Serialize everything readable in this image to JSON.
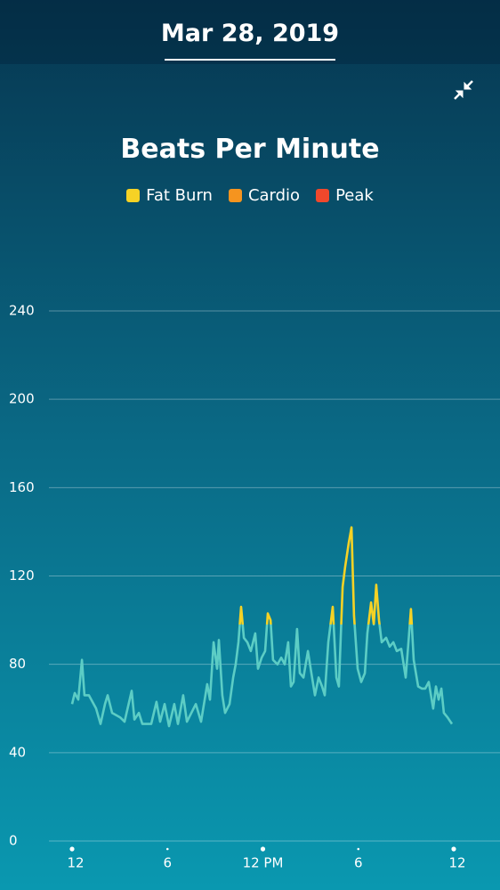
{
  "header": {
    "date": "Mar 28, 2019"
  },
  "chart_data": {
    "type": "line",
    "title": "Beats Per Minute",
    "zones": [
      {
        "name": "Fat Burn",
        "color": "#f6d225",
        "from": 98
      },
      {
        "name": "Cardio",
        "color": "#f5941f",
        "from": 145
      },
      {
        "name": "Peak",
        "color": "#f0482c",
        "from": 172
      }
    ],
    "x": [
      0,
      0.17,
      0.39,
      0.62,
      0.78,
      1.06,
      1.51,
      1.79,
      2.07,
      2.24,
      2.52,
      3.02,
      3.3,
      3.75,
      3.92,
      4.2,
      4.42,
      4.98,
      5.31,
      5.54,
      5.82,
      6.1,
      6.43,
      6.66,
      6.99,
      7.22,
      7.78,
      8.11,
      8.5,
      8.67,
      8.9,
      9.12,
      9.23,
      9.45,
      9.62,
      9.9,
      10.13,
      10.29,
      10.46,
      10.63,
      10.8,
      11.02,
      11.24,
      11.52,
      11.69,
      11.92,
      12.14,
      12.31,
      12.48,
      12.64,
      12.92,
      13.15,
      13.37,
      13.59,
      13.76,
      13.93,
      14.15,
      14.32,
      14.55,
      14.83,
      15.05,
      15.27,
      15.5,
      15.72,
      15.89,
      16.11,
      16.39,
      16.62,
      16.78,
      17.01,
      17.17,
      17.4,
      17.57,
      17.73,
      17.96,
      18.18,
      18.41,
      18.57,
      18.8,
      18.97,
      19.13,
      19.3,
      19.47,
      19.75,
      19.97,
      20.2,
      20.42,
      20.7,
      20.98,
      21.15,
      21.31,
      21.48,
      21.76,
      21.99,
      22.21,
      22.43,
      22.71,
      22.88,
      23.05,
      23.22,
      23.38,
      23.61,
      23.89
    ],
    "series": [
      {
        "color": "#5ccdc5",
        "values": [
          62,
          67,
          64,
          82,
          66,
          66,
          60,
          53,
          62,
          66,
          58,
          56,
          54,
          68,
          55,
          58,
          53,
          53,
          63,
          54,
          62,
          52,
          62,
          53,
          66,
          54,
          62,
          54,
          71,
          64,
          90,
          78,
          91,
          66,
          58,
          62,
          74,
          80,
          90,
          106,
          92,
          90,
          86,
          94,
          78,
          83,
          86,
          103,
          100,
          82,
          80,
          83,
          80,
          90,
          70,
          72,
          96,
          76,
          74,
          86,
          76,
          66,
          74,
          70,
          66,
          90,
          106,
          74,
          70,
          115,
          124,
          135,
          142,
          102,
          78,
          72,
          76,
          94,
          108,
          98,
          116,
          100,
          90,
          92,
          88,
          90,
          86,
          87,
          74,
          90,
          105,
          82,
          70,
          69,
          69,
          72,
          60,
          70,
          64,
          69,
          58,
          56,
          53
        ]
      }
    ],
    "xlim": [
      0,
      24
    ],
    "ylim": [
      0,
      240
    ],
    "xticks": [
      {
        "value": 0,
        "label": "12"
      },
      {
        "value": 6,
        "label": "6"
      },
      {
        "value": 12,
        "label": "12 PM"
      },
      {
        "value": 18,
        "label": "6"
      },
      {
        "value": 24,
        "label": "12"
      }
    ],
    "yticks": [
      0,
      40,
      80,
      120,
      160,
      200,
      240
    ],
    "grid": true
  }
}
